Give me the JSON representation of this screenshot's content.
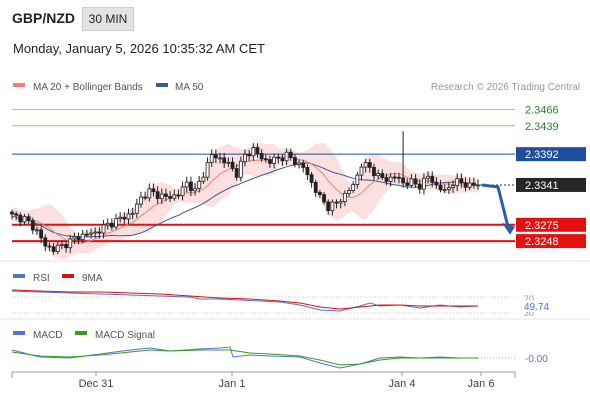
{
  "header": {
    "pair": "GBP/NZD",
    "timeframe": "30 MIN",
    "datetime": "Monday, January 5, 2026 10:35:32 AM CET"
  },
  "legend": {
    "ma20_label": "MA 20 + Bollinger Bands",
    "ma50_label": "MA 50",
    "ma20_color": "#f08080",
    "ma50_color": "#3c5a96",
    "copyright": "Research © 2026 Trading Central"
  },
  "chart_data": [
    {
      "type": "line",
      "panel": "price",
      "ylim": [
        2.322,
        2.349
      ],
      "x_ticks": [
        "Dec 31",
        "Jan 1",
        "Jan 4",
        "Jan 6"
      ],
      "levels": [
        {
          "label": "2.3466",
          "value": 2.3466,
          "kind": "resistance"
        },
        {
          "label": "2.3439",
          "value": 2.3439,
          "kind": "resistance"
        },
        {
          "label": "2.3392",
          "value": 2.3392,
          "kind": "pivot"
        },
        {
          "label": "2.3341",
          "value": 2.3341,
          "kind": "last"
        },
        {
          "label": "2.3275",
          "value": 2.3275,
          "kind": "support"
        },
        {
          "label": "2.3248",
          "value": 2.3248,
          "kind": "support"
        }
      ],
      "close_path": [
        [
          0,
          2.329
        ],
        [
          3,
          2.3285
        ],
        [
          6,
          2.3265
        ],
        [
          8,
          2.324
        ],
        [
          10,
          2.3235
        ],
        [
          12,
          2.324
        ],
        [
          15,
          2.3252
        ],
        [
          17,
          2.3258
        ],
        [
          20,
          2.3262
        ],
        [
          23,
          2.3275
        ],
        [
          26,
          2.3285
        ],
        [
          29,
          2.3295
        ],
        [
          31,
          2.332
        ],
        [
          33,
          2.333
        ],
        [
          35,
          2.3325
        ],
        [
          37,
          2.332
        ],
        [
          40,
          2.3325
        ],
        [
          42,
          2.3345
        ],
        [
          44,
          2.333
        ],
        [
          46,
          2.336
        ],
        [
          48,
          2.339
        ],
        [
          50,
          2.3385
        ],
        [
          52,
          2.3375
        ],
        [
          54,
          2.336
        ],
        [
          56,
          2.339
        ],
        [
          58,
          2.34
        ],
        [
          60,
          2.3385
        ],
        [
          62,
          2.338
        ],
        [
          64,
          2.3385
        ],
        [
          66,
          2.339
        ],
        [
          68,
          2.338
        ],
        [
          70,
          2.337
        ],
        [
          72,
          2.3345
        ],
        [
          74,
          2.332
        ],
        [
          76,
          2.3305
        ],
        [
          78,
          2.331
        ],
        [
          80,
          2.3325
        ],
        [
          82,
          2.334
        ],
        [
          84,
          2.3375
        ],
        [
          86,
          2.337
        ],
        [
          88,
          2.3355
        ],
        [
          90,
          2.335
        ],
        [
          92,
          2.3355
        ],
        [
          94,
          2.3345
        ],
        [
          96,
          2.3345
        ],
        [
          98,
          2.334
        ],
        [
          100,
          2.3355
        ],
        [
          102,
          2.334
        ],
        [
          104,
          2.333
        ],
        [
          106,
          2.3345
        ],
        [
          108,
          2.3345
        ],
        [
          110,
          2.334
        ],
        [
          112,
          2.3341
        ]
      ],
      "spike": {
        "x": 94,
        "high": 2.343
      },
      "forecast": {
        "from": 2.3341,
        "to": 2.3275
      }
    },
    {
      "type": "line",
      "panel": "rsi",
      "series": [
        {
          "name": "RSI",
          "color": "#4f74d6"
        },
        {
          "name": "9MA",
          "color": "#dd1111"
        }
      ],
      "levels": [
        "70",
        "30"
      ],
      "value_label": "49.74"
    },
    {
      "type": "line",
      "panel": "macd",
      "series": [
        {
          "name": "MACD",
          "color": "#4f74d6"
        },
        {
          "name": "MACD Signal",
          "color": "#3a9a1e"
        }
      ],
      "value_label": "-0.00"
    }
  ]
}
